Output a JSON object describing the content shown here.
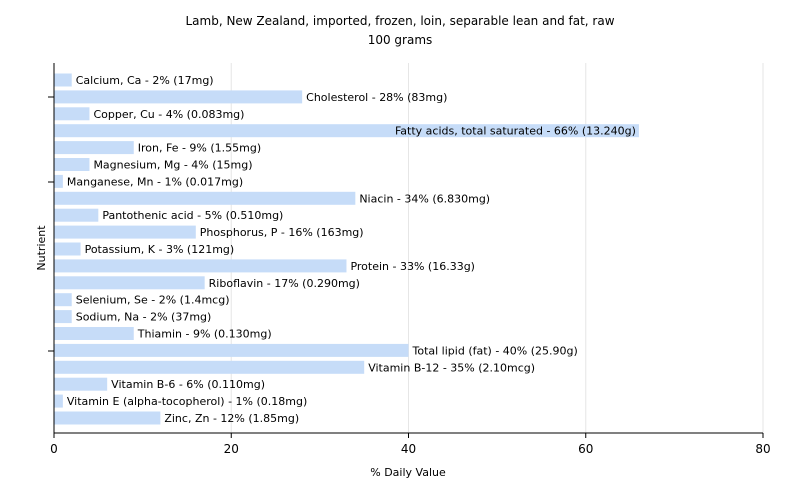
{
  "chart_data": {
    "type": "bar",
    "orientation": "horizontal",
    "title": "Lamb, New Zealand, imported, frozen, loin, separable lean and fat, raw",
    "subtitle": "100 grams",
    "xlabel": "% Daily Value",
    "ylabel": "Nutrient",
    "xlim": [
      0,
      80
    ],
    "xticks": [
      "0",
      "20",
      "40",
      "60",
      "80"
    ],
    "grid": true,
    "bar_color": "#c6dcf8",
    "categories": [
      "Calcium, Ca",
      "Cholesterol",
      "Copper, Cu",
      "Fatty acids, total saturated",
      "Iron, Fe",
      "Magnesium, Mg",
      "Manganese, Mn",
      "Niacin",
      "Pantothenic acid",
      "Phosphorus, P",
      "Potassium, K",
      "Protein",
      "Riboflavin",
      "Selenium, Se",
      "Sodium, Na",
      "Thiamin",
      "Total lipid (fat)",
      "Vitamin B-12",
      "Vitamin B-6",
      "Vitamin E (alpha-tocopherol)",
      "Zinc, Zn"
    ],
    "values": [
      2,
      28,
      4,
      66,
      9,
      4,
      1,
      34,
      5,
      16,
      3,
      33,
      17,
      2,
      2,
      9,
      40,
      35,
      6,
      1,
      12
    ],
    "labels": [
      "Calcium, Ca - 2% (17mg)",
      "Cholesterol - 28% (83mg)",
      "Copper, Cu - 4% (0.083mg)",
      "Fatty acids, total saturated - 66% (13.240g)",
      "Iron, Fe - 9% (1.55mg)",
      "Magnesium, Mg - 4% (15mg)",
      "Manganese, Mn - 1% (0.017mg)",
      "Niacin - 34% (6.830mg)",
      "Pantothenic acid - 5% (0.510mg)",
      "Phosphorus, P - 16% (163mg)",
      "Potassium, K - 3% (121mg)",
      "Protein - 33% (16.33g)",
      "Riboflavin - 17% (0.290mg)",
      "Selenium, Se - 2% (1.4mcg)",
      "Sodium, Na - 2% (37mg)",
      "Thiamin - 9% (0.130mg)",
      "Total lipid (fat) - 40% (25.90g)",
      "Vitamin B-12 - 35% (2.10mcg)",
      "Vitamin B-6 - 6% (0.110mg)",
      "Vitamin E (alpha-tocopherol) - 1% (0.18mg)",
      "Zinc, Zn - 12% (1.85mg)"
    ]
  }
}
